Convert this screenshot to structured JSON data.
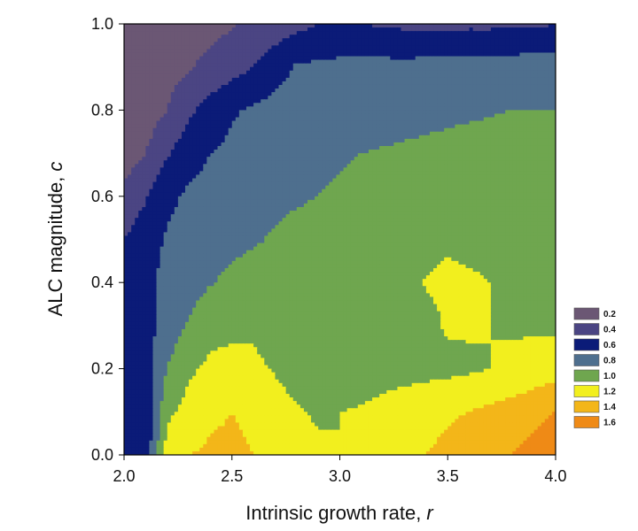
{
  "chart_data": {
    "type": "heatmap",
    "title": "",
    "xlabel": "Intrinsic growth rate, ",
    "xlabel_var": "r",
    "ylabel": "ALC magnitude, ",
    "ylabel_var": "c",
    "xlim": [
      2.0,
      4.0
    ],
    "ylim": [
      0.0,
      1.0
    ],
    "x_ticks": [
      2.0,
      2.5,
      3.0,
      3.5,
      4.0
    ],
    "x_tick_labels": [
      "2.0",
      "2.5",
      "3.0",
      "3.5",
      "4.0"
    ],
    "y_ticks": [
      0.0,
      0.2,
      0.4,
      0.6,
      0.8,
      1.0
    ],
    "y_tick_labels": [
      "0.0",
      "0.2",
      "0.4",
      "0.6",
      "0.8",
      "1.0"
    ],
    "legend_placement": "right",
    "levels": [
      0.2,
      0.4,
      0.6,
      0.8,
      1.0,
      1.2,
      1.4,
      1.6
    ],
    "legend": [
      {
        "label": "0.2",
        "color": "#6b5774"
      },
      {
        "label": "0.4",
        "color": "#4b4583"
      },
      {
        "label": "0.6",
        "color": "#0b1b78"
      },
      {
        "label": "0.8",
        "color": "#4e6f8e"
      },
      {
        "label": "1.0",
        "color": "#6fa64f"
      },
      {
        "label": "1.2",
        "color": "#f2ef1e"
      },
      {
        "label": "1.4",
        "color": "#f3b619"
      },
      {
        "label": "1.6",
        "color": "#ef8a16"
      }
    ],
    "x": [
      2.0,
      2.1,
      2.2,
      2.3,
      2.4,
      2.5,
      2.6,
      2.7,
      2.8,
      2.9,
      3.0,
      3.1,
      3.2,
      3.3,
      3.4,
      3.5,
      3.6,
      3.7,
      3.8,
      3.9,
      4.0
    ],
    "y": [
      0.0,
      0.1,
      0.2,
      0.3,
      0.4,
      0.5,
      0.6,
      0.7,
      0.8,
      0.9,
      1.0
    ],
    "z": [
      [
        0.6,
        0.65,
        1.3,
        1.4,
        1.42,
        1.42,
        1.4,
        1.34,
        1.3,
        1.24,
        1.2,
        1.24,
        1.3,
        1.36,
        1.4,
        1.44,
        1.48,
        1.54,
        1.6,
        1.68,
        1.76
      ],
      [
        0.6,
        0.65,
        1.15,
        1.28,
        1.38,
        1.4,
        1.38,
        1.3,
        1.22,
        1.17,
        1.2,
        1.22,
        1.26,
        1.3,
        1.34,
        1.38,
        1.4,
        1.44,
        1.48,
        1.54,
        1.6
      ],
      [
        0.6,
        0.68,
        1.0,
        1.16,
        1.25,
        1.26,
        1.24,
        1.18,
        1.1,
        1.05,
        1.06,
        1.09,
        1.12,
        1.13,
        1.14,
        1.15,
        1.17,
        1.2,
        1.24,
        1.28,
        1.32
      ],
      [
        0.6,
        0.72,
        0.9,
        1.02,
        1.12,
        1.16,
        1.17,
        1.12,
        1.08,
        1.05,
        1.07,
        1.1,
        1.13,
        1.14,
        1.15,
        1.22,
        1.22,
        1.2,
        1.18,
        1.17,
        1.16
      ],
      [
        0.6,
        0.76,
        0.85,
        0.92,
        0.99,
        1.04,
        1.07,
        1.08,
        1.08,
        1.07,
        1.08,
        1.09,
        1.11,
        1.13,
        1.21,
        1.23,
        1.22,
        1.2,
        1.18,
        1.17,
        1.16
      ],
      [
        0.6,
        0.72,
        0.82,
        0.87,
        0.92,
        0.96,
        0.98,
        1.02,
        1.05,
        1.07,
        1.09,
        1.07,
        1.1,
        1.12,
        1.15,
        1.18,
        1.16,
        1.15,
        1.14,
        1.14,
        1.14
      ],
      [
        0.45,
        0.58,
        0.76,
        0.83,
        0.87,
        0.9,
        0.93,
        0.96,
        0.98,
        1.0,
        1.02,
        1.04,
        1.06,
        1.08,
        1.09,
        1.1,
        1.1,
        1.1,
        1.1,
        1.1,
        1.1
      ],
      [
        0.3,
        0.4,
        0.58,
        0.72,
        0.8,
        0.84,
        0.88,
        0.91,
        0.94,
        0.96,
        0.98,
        1.0,
        1.01,
        1.02,
        1.03,
        1.04,
        1.05,
        1.05,
        1.06,
        1.06,
        1.06
      ],
      [
        0.25,
        0.3,
        0.4,
        0.56,
        0.68,
        0.78,
        0.83,
        0.86,
        0.88,
        0.9,
        0.92,
        0.93,
        0.94,
        0.95,
        0.96,
        0.97,
        0.98,
        0.99,
        1.0,
        1.0,
        1.0
      ],
      [
        0.22,
        0.25,
        0.32,
        0.38,
        0.46,
        0.52,
        0.6,
        0.72,
        0.82,
        0.84,
        0.85,
        0.86,
        0.86,
        0.86,
        0.87,
        0.87,
        0.88,
        0.88,
        0.89,
        0.9,
        0.9
      ],
      [
        0.2,
        0.22,
        0.26,
        0.3,
        0.34,
        0.38,
        0.44,
        0.48,
        0.54,
        0.6,
        0.62,
        0.6,
        0.58,
        0.56,
        0.55,
        0.55,
        0.56,
        0.56,
        0.57,
        0.58,
        0.59
      ]
    ]
  }
}
